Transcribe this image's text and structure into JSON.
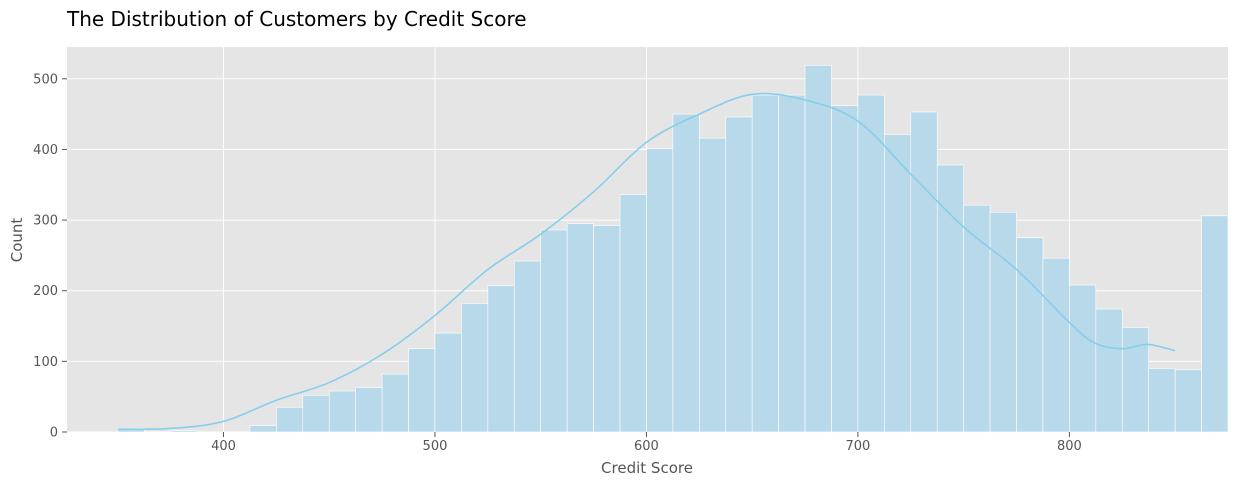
{
  "chart_data": {
    "type": "bar",
    "title": "The Distribution of Customers by Credit Score",
    "xlabel": "Credit Score",
    "ylabel": "Count",
    "xlim": [
      326,
      875
    ],
    "ylim": [
      0,
      545
    ],
    "xticks": [
      400,
      500,
      600,
      700,
      800
    ],
    "yticks": [
      0,
      100,
      200,
      300,
      400,
      500
    ],
    "bin_start": 350,
    "bin_width": 12.5,
    "values": [
      5,
      0,
      2,
      0,
      0,
      9,
      35,
      52,
      58,
      63,
      82,
      118,
      140,
      182,
      207,
      242,
      286,
      295,
      292,
      336,
      401,
      450,
      416,
      446,
      477,
      477,
      519,
      462,
      477,
      421,
      453,
      378,
      321,
      311,
      275,
      246,
      208,
      174,
      148,
      90,
      88,
      306
    ],
    "kde": {
      "x": [
        350,
        375,
        400,
        425,
        450,
        475,
        500,
        525,
        550,
        575,
        600,
        625,
        650,
        675,
        700,
        725,
        750,
        775,
        800,
        812,
        825,
        837,
        850
      ],
      "y": [
        4,
        5,
        15,
        45,
        70,
        110,
        165,
        230,
        280,
        340,
        410,
        450,
        478,
        470,
        440,
        365,
        290,
        230,
        155,
        126,
        118,
        124,
        115
      ]
    },
    "grid": true,
    "colors": {
      "bar": "#b8d9ea",
      "kde": "#87ceeb",
      "background": "#e5e5e5",
      "grid": "#ffffff"
    }
  }
}
